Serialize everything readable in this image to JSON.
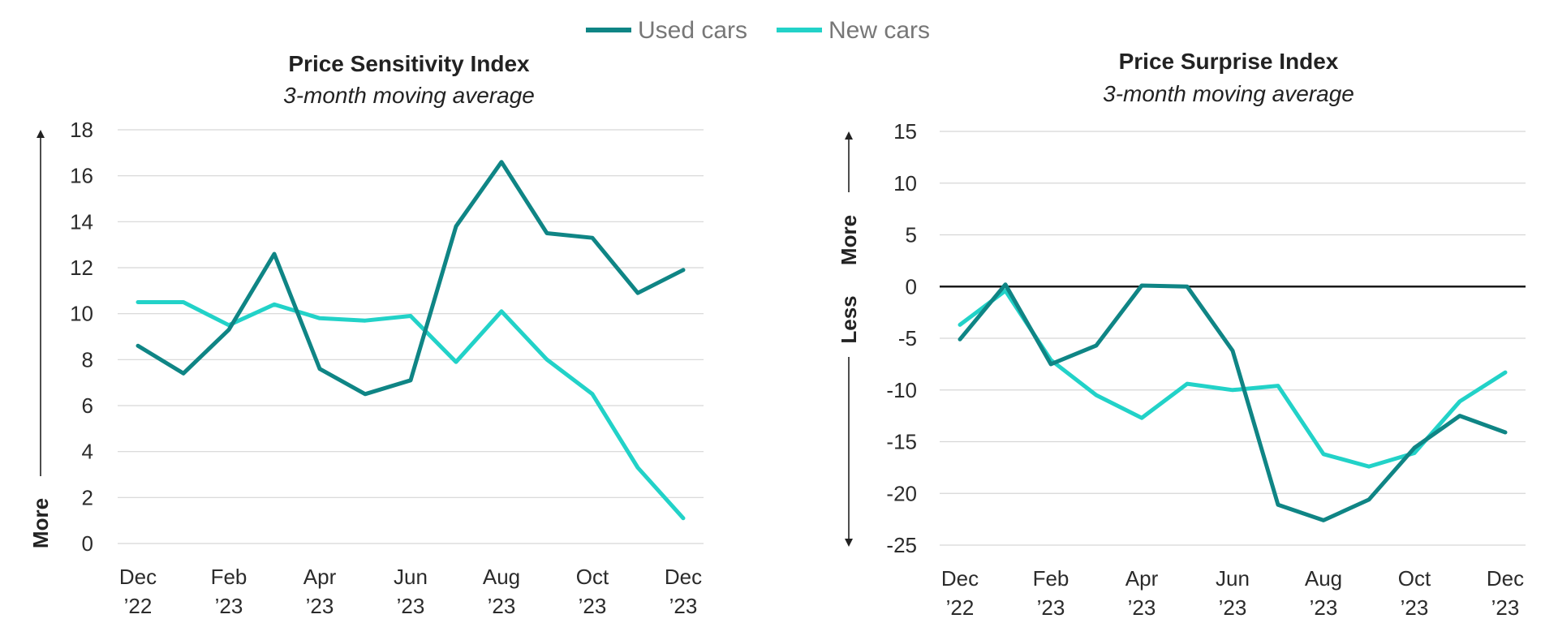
{
  "legend": [
    {
      "name": "Used cars",
      "color": "#0f8585"
    },
    {
      "name": "New cars",
      "color": "#22d2c8"
    }
  ],
  "chart_data": [
    {
      "type": "line",
      "title": "Price Sensitivity Index",
      "subtitle": "3-month moving average",
      "side_labels": [
        "More"
      ],
      "x": [
        "Dec '22",
        "Jan '23",
        "Feb '23",
        "Mar '23",
        "Apr '23",
        "May '23",
        "Jun '23",
        "Jul '23",
        "Aug '23",
        "Sep '23",
        "Oct '23",
        "Nov '23",
        "Dec '23"
      ],
      "tick_labels": [
        {
          "index": 0,
          "line1": "Dec",
          "line2": "’22"
        },
        {
          "index": 2,
          "line1": "Feb",
          "line2": "’23"
        },
        {
          "index": 4,
          "line1": "Apr",
          "line2": "’23"
        },
        {
          "index": 6,
          "line1": "Jun",
          "line2": "’23"
        },
        {
          "index": 8,
          "line1": "Aug",
          "line2": "’23"
        },
        {
          "index": 10,
          "line1": "Oct",
          "line2": "’23"
        },
        {
          "index": 12,
          "line1": "Dec",
          "line2": "’23"
        }
      ],
      "ylim": [
        0,
        18
      ],
      "yticks": [
        0,
        2,
        4,
        6,
        8,
        10,
        12,
        14,
        16,
        18
      ],
      "zero_line": false,
      "grid": true,
      "series": [
        {
          "name": "Used cars",
          "values": [
            8.6,
            7.4,
            9.3,
            12.6,
            7.6,
            6.5,
            7.1,
            13.8,
            16.6,
            13.5,
            13.3,
            10.9,
            11.9
          ]
        },
        {
          "name": "New cars",
          "values": [
            10.5,
            10.5,
            9.5,
            10.4,
            9.8,
            9.7,
            9.9,
            7.9,
            10.1,
            8.0,
            6.5,
            3.3,
            1.1
          ]
        }
      ]
    },
    {
      "type": "line",
      "title": "Price Surprise Index",
      "subtitle": "3-month moving average",
      "side_labels": [
        "More",
        "Less"
      ],
      "x": [
        "Dec '22",
        "Jan '23",
        "Feb '23",
        "Mar '23",
        "Apr '23",
        "May '23",
        "Jun '23",
        "Jul '23",
        "Aug '23",
        "Sep '23",
        "Oct '23",
        "Nov '23",
        "Dec '23"
      ],
      "tick_labels": [
        {
          "index": 0,
          "line1": "Dec",
          "line2": "’22"
        },
        {
          "index": 2,
          "line1": "Feb",
          "line2": "’23"
        },
        {
          "index": 4,
          "line1": "Apr",
          "line2": "’23"
        },
        {
          "index": 6,
          "line1": "Jun",
          "line2": "’23"
        },
        {
          "index": 8,
          "line1": "Aug",
          "line2": "’23"
        },
        {
          "index": 10,
          "line1": "Oct",
          "line2": "’23"
        },
        {
          "index": 12,
          "line1": "Dec",
          "line2": "’23"
        }
      ],
      "ylim": [
        -25,
        15
      ],
      "yticks": [
        -25,
        -20,
        -15,
        -10,
        -5,
        0,
        5,
        10,
        15
      ],
      "zero_line": true,
      "grid": true,
      "series": [
        {
          "name": "Used cars",
          "values": [
            -5.1,
            0.2,
            -7.5,
            -5.7,
            0.1,
            0.0,
            -6.2,
            -21.1,
            -22.6,
            -20.6,
            -15.6,
            -12.5,
            -14.1
          ]
        },
        {
          "name": "New cars",
          "values": [
            -3.7,
            -0.4,
            -7.1,
            -10.5,
            -12.7,
            -9.4,
            -10.0,
            -9.6,
            -16.2,
            -17.4,
            -16.1,
            -11.1,
            -8.3
          ]
        }
      ]
    }
  ]
}
